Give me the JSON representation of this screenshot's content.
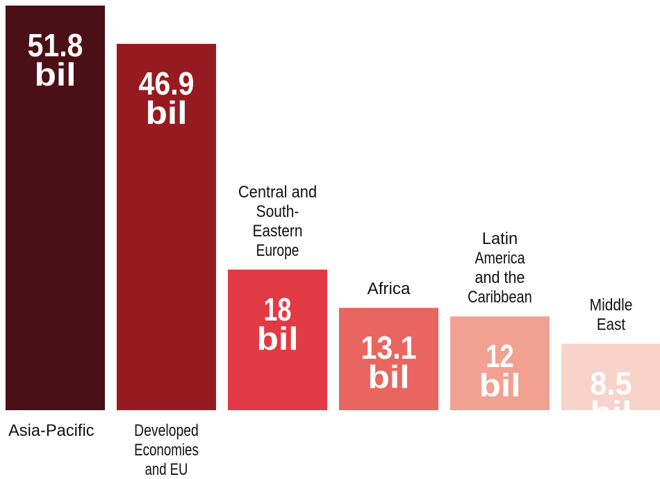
{
  "chart_data": {
    "type": "bar",
    "title": "",
    "xlabel": "",
    "ylabel": "",
    "ylim": [
      0,
      51.8
    ],
    "grid": false,
    "unit_label": "bil",
    "categories": [
      [
        "Asia-Pacific"
      ],
      [
        "Developed",
        "Economies",
        "and EU"
      ],
      [
        "Central and",
        "South-",
        "Eastern",
        "Europe"
      ],
      [
        "Africa"
      ],
      [
        "Latin",
        "America",
        "and the",
        "Caribbean"
      ],
      [
        "Middle",
        "East"
      ]
    ],
    "label_position": [
      "below",
      "below",
      "above",
      "above",
      "above",
      "above"
    ],
    "values": [
      51.8,
      46.9,
      18,
      13.1,
      12,
      8.5
    ],
    "value_labels": [
      "51.8",
      "46.9",
      "18",
      "13.1",
      "12",
      "8.5"
    ],
    "colors": [
      "#4b1015",
      "#961b21",
      "#e13a44",
      "#e8665f",
      "#f2a092",
      "#f8d3ca"
    ]
  }
}
